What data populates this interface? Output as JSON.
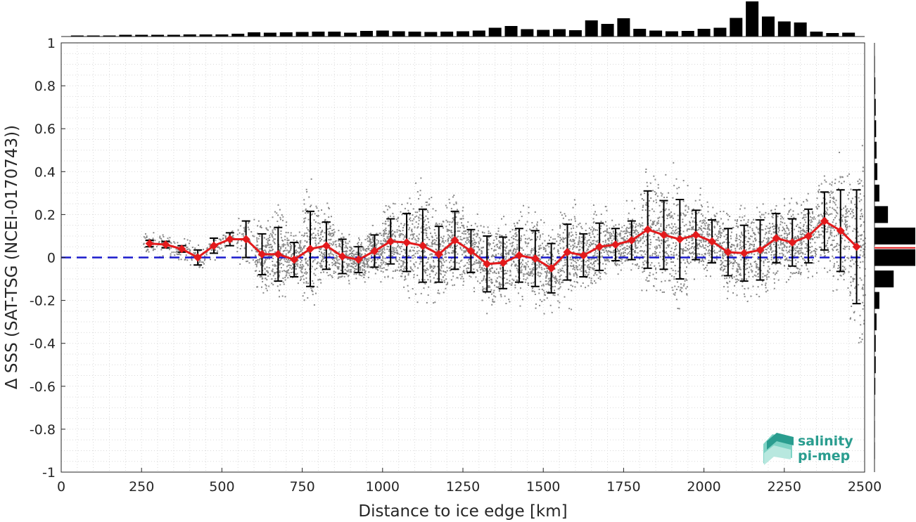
{
  "chart_data": {
    "type": "line",
    "xlabel": "Distance to ice edge [km]",
    "ylabel": "Δ SSS (SAT-TSG (NCEI-0170743))",
    "xlim": [
      0,
      2500
    ],
    "ylim": [
      -1,
      1
    ],
    "xticks": [
      "0",
      "250",
      "500",
      "750",
      "1000",
      "1250",
      "1500",
      "1750",
      "2000",
      "2250",
      "2500"
    ],
    "yticks": [
      "1",
      "0.8",
      "0.6",
      "0.4",
      "0.2",
      "0",
      "-0.2",
      "-0.4",
      "-0.6",
      "-0.8",
      "-1"
    ],
    "grid": true,
    "zero_line": {
      "y": 0,
      "color": "#1a1acc",
      "style": "dashed"
    },
    "series": [
      {
        "color": "#e31a1c",
        "x": [
          275,
          325,
          375,
          425,
          475,
          525,
          575,
          625,
          675,
          725,
          775,
          825,
          875,
          925,
          975,
          1025,
          1075,
          1125,
          1175,
          1225,
          1275,
          1325,
          1375,
          1425,
          1475,
          1525,
          1575,
          1625,
          1675,
          1725,
          1775,
          1825,
          1875,
          1925,
          1975,
          2025,
          2075,
          2125,
          2175,
          2225,
          2275,
          2325,
          2375,
          2425,
          2475
        ],
        "y": [
          0.065,
          0.06,
          0.04,
          0.0,
          0.055,
          0.085,
          0.085,
          0.015,
          0.015,
          -0.01,
          0.04,
          0.055,
          0.005,
          -0.01,
          0.03,
          0.075,
          0.07,
          0.055,
          0.015,
          0.08,
          0.03,
          -0.03,
          -0.025,
          0.01,
          -0.005,
          -0.05,
          0.025,
          0.01,
          0.05,
          0.06,
          0.08,
          0.13,
          0.105,
          0.085,
          0.105,
          0.075,
          0.025,
          0.02,
          0.035,
          0.09,
          0.07,
          0.1,
          0.17,
          0.125,
          0.05
        ],
        "err": [
          0.015,
          0.015,
          0.015,
          0.035,
          0.035,
          0.03,
          0.085,
          0.095,
          0.125,
          0.08,
          0.175,
          0.11,
          0.08,
          0.06,
          0.075,
          0.105,
          0.135,
          0.17,
          0.13,
          0.135,
          0.1,
          0.13,
          0.12,
          0.125,
          0.13,
          0.115,
          0.13,
          0.1,
          0.11,
          0.075,
          0.09,
          0.18,
          0.16,
          0.185,
          0.115,
          0.1,
          0.11,
          0.13,
          0.14,
          0.115,
          0.11,
          0.125,
          0.135,
          0.19,
          0.265
        ]
      }
    ],
    "scatter_color": "#888888",
    "top_histogram": {
      "x": [
        50,
        100,
        150,
        200,
        250,
        300,
        350,
        400,
        450,
        500,
        550,
        600,
        650,
        700,
        750,
        800,
        850,
        900,
        950,
        1000,
        1050,
        1100,
        1150,
        1200,
        1250,
        1300,
        1350,
        1400,
        1450,
        1500,
        1550,
        1600,
        1650,
        1700,
        1750,
        1800,
        1850,
        1900,
        1950,
        2000,
        2050,
        2100,
        2150,
        2200,
        2250,
        2300,
        2350,
        2400,
        2450
      ],
      "counts": [
        0.03,
        0.03,
        0.03,
        0.05,
        0.05,
        0.05,
        0.05,
        0.06,
        0.06,
        0.06,
        0.08,
        0.12,
        0.11,
        0.12,
        0.13,
        0.14,
        0.14,
        0.11,
        0.16,
        0.17,
        0.15,
        0.14,
        0.13,
        0.14,
        0.15,
        0.17,
        0.25,
        0.3,
        0.21,
        0.19,
        0.21,
        0.18,
        0.46,
        0.36,
        0.52,
        0.22,
        0.17,
        0.15,
        0.16,
        0.22,
        0.25,
        0.53,
        1.0,
        0.57,
        0.43,
        0.4,
        0.14,
        0.1,
        0.11
      ]
    },
    "right_histogram": {
      "y": [
        0.9,
        0.8,
        0.7,
        0.6,
        0.5,
        0.4,
        0.3,
        0.2,
        0.1,
        0.0,
        -0.1,
        -0.2,
        -0.3,
        -0.4,
        -0.5,
        -0.6,
        -0.7,
        -0.8,
        -0.9
      ],
      "counts": [
        0.01,
        0.02,
        0.03,
        0.04,
        0.05,
        0.07,
        0.12,
        0.33,
        1.0,
        1.0,
        0.47,
        0.12,
        0.05,
        0.03,
        0.03,
        0.02,
        0.01,
        0.01,
        0.01
      ],
      "mean_line": {
        "y": 0.045,
        "color": "#e31a1c"
      }
    }
  },
  "logo": {
    "line1": "salinity",
    "line2": "pi-mep"
  }
}
